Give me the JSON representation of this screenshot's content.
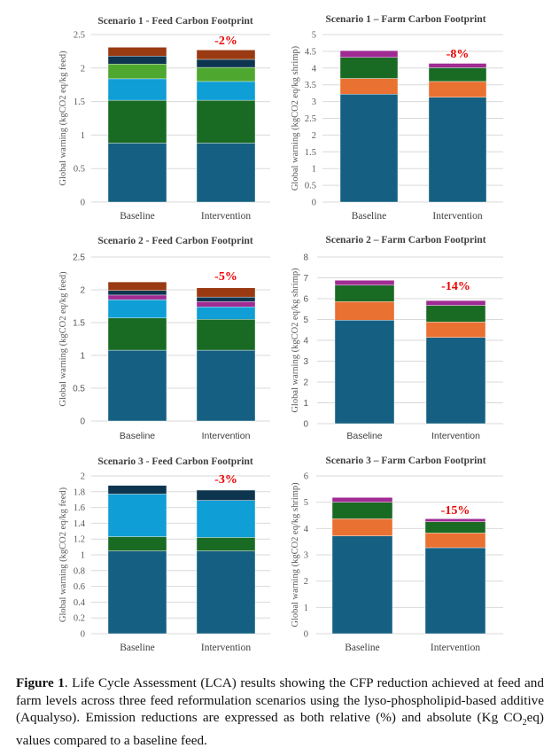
{
  "colors": {
    "feed_base": "#156082",
    "feed_dark_green": "#196B24",
    "feed_light_blue": "#0F9ED5",
    "feed_light_green": "#4EA72E",
    "feed_purple": "#A02B93",
    "feed_navy": "#0E3550",
    "feed_brown": "#9A3A12",
    "farm_base": "#156082",
    "farm_orange": "#E97132",
    "farm_green": "#196B24",
    "farm_purple": "#A02B93",
    "reduction_label": "#EE0000"
  },
  "chart_data": [
    {
      "id": "s1-feed",
      "type": "bar",
      "stacked": true,
      "title": "Scenario 1 - Feed Carbon Footprint",
      "ylabel": "Global warning (kgCO2 eq/kg feed)",
      "xlabel": "",
      "categories": [
        "Baseline",
        "Intervention"
      ],
      "ylim": [
        0,
        2.5
      ],
      "yticks": [
        "0",
        "0.5",
        "1",
        "1.5",
        "2",
        "2.5"
      ],
      "ytick_values": [
        0,
        0.5,
        1,
        1.5,
        2,
        2.5
      ],
      "grid": true,
      "annotation": "-2%",
      "series": [
        {
          "name": "segment-1",
          "color_key": "feed_base",
          "values": [
            0.88,
            0.88
          ]
        },
        {
          "name": "segment-2",
          "color_key": "feed_dark_green",
          "values": [
            0.64,
            0.64
          ]
        },
        {
          "name": "segment-3",
          "color_key": "feed_light_blue",
          "values": [
            0.32,
            0.28
          ]
        },
        {
          "name": "segment-4",
          "color_key": "feed_light_green",
          "values": [
            0.22,
            0.21
          ]
        },
        {
          "name": "segment-5",
          "color_key": "feed_navy",
          "values": [
            0.12,
            0.12
          ]
        },
        {
          "name": "segment-6",
          "color_key": "feed_brown",
          "values": [
            0.13,
            0.14
          ]
        }
      ],
      "totals": [
        2.31,
        2.27
      ]
    },
    {
      "id": "s1-farm",
      "type": "bar",
      "stacked": true,
      "title": "Scenario 1 – Farm Carbon Footprint",
      "ylabel": "Global warning (kgCO2 eq/kg shrimp)",
      "xlabel": "",
      "categories": [
        "Baseline",
        "Intervention"
      ],
      "ylim": [
        0,
        5
      ],
      "yticks": [
        "0",
        "0.5",
        "1",
        "1.5",
        "2",
        "2.5",
        "3",
        "3.5",
        "4",
        "4.5",
        "5"
      ],
      "ytick_values": [
        0,
        0.5,
        1,
        1.5,
        2,
        2.5,
        3,
        3.5,
        4,
        4.5,
        5
      ],
      "grid": true,
      "annotation": "-8%",
      "series": [
        {
          "name": "segment-1",
          "color_key": "farm_base",
          "values": [
            3.22,
            3.13
          ]
        },
        {
          "name": "segment-2",
          "color_key": "farm_orange",
          "values": [
            0.47,
            0.47
          ]
        },
        {
          "name": "segment-3",
          "color_key": "farm_green",
          "values": [
            0.63,
            0.41
          ]
        },
        {
          "name": "segment-4",
          "color_key": "farm_purple",
          "values": [
            0.2,
            0.13
          ]
        }
      ],
      "totals": [
        4.52,
        4.14
      ]
    },
    {
      "id": "s2-feed",
      "type": "bar",
      "stacked": true,
      "title": "Scenario 2 - Feed Carbon Footprint",
      "ylabel": "Global warning (kgCO2 eq/kg feed)",
      "xlabel": "",
      "categories": [
        "Baseline",
        "Intervention"
      ],
      "ylim": [
        0,
        2.5
      ],
      "yticks": [
        "0",
        "0.5",
        "1",
        "1.5",
        "2",
        "2.5"
      ],
      "ytick_values": [
        0,
        0.5,
        1,
        1.5,
        2,
        2.5
      ],
      "grid": true,
      "annotation": "-5%",
      "series": [
        {
          "name": "segment-1",
          "color_key": "feed_base",
          "values": [
            1.08,
            1.08
          ]
        },
        {
          "name": "segment-2",
          "color_key": "feed_dark_green",
          "values": [
            0.49,
            0.47
          ]
        },
        {
          "name": "segment-3",
          "color_key": "feed_light_blue",
          "values": [
            0.28,
            0.19
          ]
        },
        {
          "name": "segment-4",
          "color_key": "feed_purple",
          "values": [
            0.07,
            0.08
          ]
        },
        {
          "name": "segment-5",
          "color_key": "feed_navy",
          "values": [
            0.07,
            0.07
          ]
        },
        {
          "name": "segment-6",
          "color_key": "feed_brown",
          "values": [
            0.13,
            0.14
          ]
        }
      ],
      "totals": [
        2.12,
        2.03
      ]
    },
    {
      "id": "s2-farm",
      "type": "bar",
      "stacked": true,
      "title": "Scenario 2 – Farm Carbon Footprint",
      "ylabel": "Global warning (kgCO2 eq/kg shrimp)",
      "xlabel": "",
      "categories": [
        "Baseline",
        "Intervention"
      ],
      "ylim": [
        0,
        8
      ],
      "yticks": [
        "0",
        "1",
        "2",
        "3",
        "4",
        "5",
        "6",
        "7",
        "8"
      ],
      "ytick_values": [
        0,
        1,
        2,
        3,
        4,
        5,
        6,
        7,
        8
      ],
      "grid": true,
      "annotation": "-14%",
      "series": [
        {
          "name": "segment-1",
          "color_key": "farm_base",
          "values": [
            4.97,
            4.14
          ]
        },
        {
          "name": "segment-2",
          "color_key": "farm_orange",
          "values": [
            0.89,
            0.74
          ]
        },
        {
          "name": "segment-3",
          "color_key": "farm_green",
          "values": [
            0.79,
            0.8
          ]
        },
        {
          "name": "segment-4",
          "color_key": "farm_purple",
          "values": [
            0.23,
            0.23
          ]
        }
      ],
      "totals": [
        6.88,
        5.91
      ]
    },
    {
      "id": "s3-feed",
      "type": "bar",
      "stacked": true,
      "title": "Scenario 3 - Feed Carbon Footprint",
      "ylabel": "Global warning (kgCO2 eq/kg feed)",
      "xlabel": "",
      "categories": [
        "Baseline",
        "Intervention"
      ],
      "ylim": [
        0,
        2
      ],
      "yticks": [
        "0",
        "0.2",
        "0.4",
        "0.6",
        "0.8",
        "1",
        "1.2",
        "1.4",
        "1.6",
        "1.8",
        "2"
      ],
      "ytick_values": [
        0,
        0.2,
        0.4,
        0.6,
        0.8,
        1,
        1.2,
        1.4,
        1.6,
        1.8,
        2
      ],
      "grid": true,
      "annotation": "-3%",
      "series": [
        {
          "name": "segment-1",
          "color_key": "feed_base",
          "values": [
            1.05,
            1.05
          ]
        },
        {
          "name": "segment-2",
          "color_key": "feed_dark_green",
          "values": [
            0.18,
            0.17
          ]
        },
        {
          "name": "segment-3",
          "color_key": "feed_light_blue",
          "values": [
            0.54,
            0.47
          ]
        },
        {
          "name": "segment-4",
          "color_key": "feed_navy",
          "values": [
            0.11,
            0.13
          ]
        }
      ],
      "totals": [
        1.88,
        1.82
      ]
    },
    {
      "id": "s3-farm",
      "type": "bar",
      "stacked": true,
      "title": "Scenario 3 – Farm Carbon Footprint",
      "ylabel": "Global warning (kgCO2 eq/kg shrimp)",
      "xlabel": "",
      "categories": [
        "Baseline",
        "Intervention"
      ],
      "ylim": [
        0,
        6
      ],
      "yticks": [
        "0",
        "1",
        "2",
        "3",
        "4",
        "5",
        "6"
      ],
      "ytick_values": [
        0,
        1,
        2,
        3,
        4,
        5,
        6
      ],
      "grid": true,
      "annotation": "-15%",
      "series": [
        {
          "name": "segment-1",
          "color_key": "farm_base",
          "values": [
            3.72,
            3.27
          ]
        },
        {
          "name": "segment-2",
          "color_key": "farm_orange",
          "values": [
            0.65,
            0.56
          ]
        },
        {
          "name": "segment-3",
          "color_key": "farm_green",
          "values": [
            0.63,
            0.43
          ]
        },
        {
          "name": "segment-4",
          "color_key": "farm_purple",
          "values": [
            0.18,
            0.11
          ]
        }
      ],
      "totals": [
        5.18,
        4.37
      ]
    }
  ],
  "caption": {
    "label": "Figure 1",
    "text_1": ". Life Cycle Assessment (LCA) results showing the CFP reduction achieved at feed and farm levels across three feed reformulation scenarios using the lyso-phospholipid-based additive (Aqualyso). Emission reductions are expressed as both relative (%) and absolute (Kg CO",
    "subscript": "2",
    "text_2": "eq) values compared to a baseline feed."
  }
}
